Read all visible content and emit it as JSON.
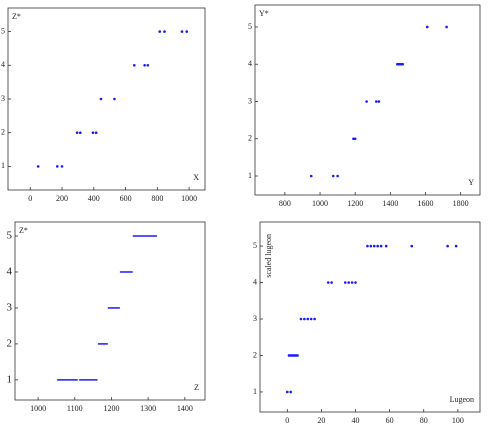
{
  "chart_data": [
    {
      "type": "scatter",
      "y_label": "Z*",
      "x_label": "X",
      "xlim": [
        -140,
        1100
      ],
      "ylim": [
        0.3,
        5.7
      ],
      "xticks": [
        0,
        200,
        400,
        600,
        800,
        1000
      ],
      "yticks": [
        1,
        2,
        3,
        4,
        5
      ],
      "color": "#1a1aff",
      "x": [
        50,
        170,
        200,
        295,
        315,
        395,
        415,
        445,
        530,
        655,
        720,
        740,
        815,
        845,
        955,
        985
      ],
      "values": [
        1,
        1,
        1,
        2,
        2,
        2,
        2,
        3,
        3,
        4,
        4,
        4,
        5,
        5,
        5,
        5
      ]
    },
    {
      "type": "scatter",
      "y_label": "Y*",
      "x_label": "Y",
      "xlim": [
        630,
        1910
      ],
      "ylim": [
        0.49,
        5.59
      ],
      "xticks": [
        800,
        1000,
        1200,
        1400,
        1600,
        1800
      ],
      "yticks": [
        1,
        2,
        3,
        4,
        5
      ],
      "color": "#1a1aff",
      "x": [
        950,
        1075,
        1100,
        1190,
        1200,
        1265,
        1320,
        1335,
        1440,
        1450,
        1460,
        1470,
        1610,
        1720
      ],
      "values": [
        1,
        1,
        1,
        2,
        2,
        3,
        3,
        3,
        4,
        4,
        4,
        4,
        5,
        5
      ]
    },
    {
      "type": "interval",
      "y_label": "Z*",
      "x_label": "Z",
      "xlim": [
        937,
        1455
      ],
      "ylim": [
        0.44,
        5.39
      ],
      "xticks": [
        1000,
        1100,
        1200,
        1300,
        1400
      ],
      "yticks": [
        1,
        2,
        3,
        4,
        5
      ],
      "color": "#1a1aff",
      "x_start": [
        1052,
        1112,
        1163,
        1190,
        1223,
        1258
      ],
      "x_end": [
        1108,
        1162,
        1190,
        1223,
        1258,
        1324
      ],
      "values": [
        1,
        1,
        2,
        3,
        4,
        5
      ]
    },
    {
      "type": "scatter",
      "y_label": "scaled lugeon",
      "x_label": "Lugeon",
      "xlim": [
        -16,
        113
      ],
      "ylim": [
        0.45,
        5.66
      ],
      "xticks": [
        0,
        20,
        40,
        60,
        80,
        100
      ],
      "yticks": [
        1,
        2,
        3,
        4,
        5
      ],
      "color": "#1a1aff",
      "x": [
        0,
        2,
        1,
        2,
        3,
        4,
        5,
        6,
        8,
        10,
        12,
        14,
        16,
        24,
        26,
        34,
        36,
        38,
        40,
        47,
        49,
        51,
        53,
        55,
        58,
        73,
        94,
        99
      ],
      "values": [
        1,
        1,
        2,
        2,
        2,
        2,
        2,
        2,
        3,
        3,
        3,
        3,
        3,
        4,
        4,
        4,
        4,
        4,
        4,
        5,
        5,
        5,
        5,
        5,
        5,
        5,
        5,
        5
      ]
    }
  ]
}
